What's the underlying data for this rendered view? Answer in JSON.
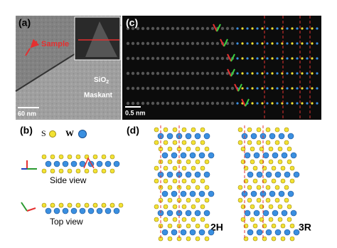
{
  "panels": {
    "a": {
      "label": "(a)",
      "sample": "Sample",
      "substrate": {
        "text": "SiO",
        "subscript": "2"
      },
      "maskant": "Maskant",
      "scale_bar": "60 nm"
    },
    "c": {
      "label": "(c)",
      "scale_bar": "0.5 nm"
    },
    "b": {
      "label": "(b)",
      "legend_s": "S",
      "legend_w": "W",
      "side_view": "Side view",
      "top_view": "Top view"
    },
    "d": {
      "label": "(d)",
      "left_stacking": "2H",
      "right_stacking": "3R"
    }
  }
}
